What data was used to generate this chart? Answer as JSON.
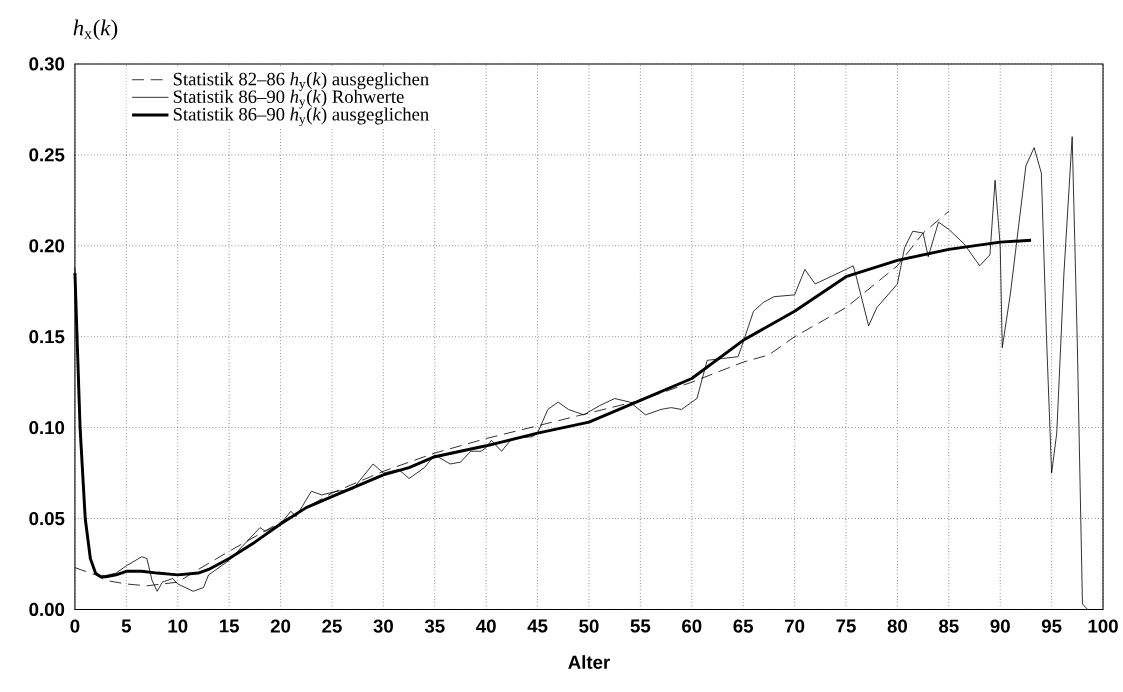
{
  "chart_data": {
    "type": "line",
    "xlabel": "Alter",
    "ylabel": "*h*$_{x}$(*k*)",
    "xlim": [
      0,
      100
    ],
    "ylim": [
      0,
      0.3
    ],
    "xticks": [
      0,
      5,
      10,
      15,
      20,
      25,
      30,
      35,
      40,
      45,
      50,
      55,
      60,
      65,
      70,
      75,
      80,
      85,
      90,
      95,
      100
    ],
    "yticks": [
      {
        "value": 0,
        "label": "0.00"
      },
      {
        "value": 0.05,
        "label": "0.05"
      },
      {
        "value": 0.1,
        "label": "0.10"
      },
      {
        "value": 0.15,
        "label": "0.15"
      },
      {
        "value": 0.2,
        "label": "0.20"
      },
      {
        "value": 0.25,
        "label": "0.25"
      },
      {
        "value": 0.3,
        "label": "0.30"
      }
    ],
    "grid": true,
    "legend": "top left",
    "series": [
      {
        "name": "Statistik 82–86 *h*$_{y}$(*k*) ausgeglichen",
        "color": "#000000",
        "line_style": "dashed",
        "x": [
          0,
          1,
          2,
          3,
          5,
          7,
          10,
          12,
          15,
          20,
          25,
          30,
          35,
          40,
          45,
          50,
          55,
          60,
          65,
          67.5,
          70,
          75,
          80,
          82.5,
          85
        ],
        "values": [
          0.023,
          0.021,
          0.019,
          0.016,
          0.014,
          0.013,
          0.015,
          0.022,
          0.032,
          0.048,
          0.064,
          0.076,
          0.086,
          0.094,
          0.101,
          0.108,
          0.115,
          0.125,
          0.136,
          0.14,
          0.15,
          0.166,
          0.189,
          0.207,
          0.219
        ]
      },
      {
        "name": "Statistik 86–90 *h*$_{y}$(*k*) Rohwerte",
        "color": "#000000",
        "line_style": "solid",
        "x": [
          0,
          0.5,
          1,
          1.5,
          2,
          2.5,
          4,
          5,
          6.5,
          7,
          7.5,
          8,
          8.5,
          9.5,
          10,
          11.5,
          12.5,
          13,
          15,
          18,
          18.5,
          20,
          21,
          21.5,
          23,
          24,
          25.5,
          27,
          29,
          30,
          31.5,
          32.5,
          34,
          35,
          36.5,
          37.5,
          38.5,
          39.5,
          40,
          40.5,
          41.5,
          42.5,
          44.5,
          45,
          46,
          47,
          48,
          49.5,
          51,
          52.5,
          54,
          55.5,
          57,
          58,
          59,
          60.5,
          61.5,
          63,
          64.5,
          65,
          66,
          67,
          68,
          70,
          71,
          72,
          75,
          75.7,
          76,
          77.2,
          78,
          80,
          80.7,
          81.5,
          82.5,
          83,
          84,
          85,
          86.5,
          88,
          89,
          89.5,
          90,
          90.2,
          91,
          92.5,
          93.3,
          94,
          94.5,
          95,
          95.5,
          96.2,
          97,
          97.5,
          98,
          98.5
        ],
        "values": [
          0.188,
          0.105,
          0.052,
          0.028,
          0.02,
          0.018,
          0.02,
          0.024,
          0.029,
          0.028,
          0.016,
          0.01,
          0.015,
          0.017,
          0.014,
          0.01,
          0.012,
          0.019,
          0.027,
          0.045,
          0.043,
          0.047,
          0.054,
          0.051,
          0.065,
          0.063,
          0.065,
          0.066,
          0.08,
          0.075,
          0.077,
          0.072,
          0.078,
          0.085,
          0.08,
          0.081,
          0.087,
          0.087,
          0.089,
          0.093,
          0.087,
          0.094,
          0.095,
          0.097,
          0.11,
          0.114,
          0.11,
          0.107,
          0.112,
          0.116,
          0.114,
          0.107,
          0.11,
          0.111,
          0.11,
          0.116,
          0.137,
          0.138,
          0.139,
          0.147,
          0.164,
          0.169,
          0.172,
          0.173,
          0.187,
          0.179,
          0.187,
          0.189,
          0.183,
          0.156,
          0.166,
          0.179,
          0.199,
          0.208,
          0.207,
          0.194,
          0.213,
          0.209,
          0.201,
          0.189,
          0.195,
          0.236,
          0.2,
          0.144,
          0.174,
          0.244,
          0.254,
          0.24,
          0.15,
          0.075,
          0.097,
          0.185,
          0.26,
          0.146,
          0.003,
          0.0
        ]
      },
      {
        "name": "Statistik 86–90 *h*$_{y}$(*k*) ausgeglichen",
        "color": "#000000",
        "line_style": "solid",
        "x": [
          0,
          0.5,
          1,
          1.5,
          2,
          2.5,
          3,
          4,
          5,
          6.5,
          8,
          10,
          12,
          13,
          15,
          17.5,
          20,
          22.5,
          25,
          27.5,
          30,
          32.5,
          35,
          40,
          45,
          50,
          55,
          60,
          65,
          70,
          75,
          80,
          85,
          90,
          93
        ],
        "values": [
          0.185,
          0.1,
          0.05,
          0.028,
          0.02,
          0.018,
          0.018,
          0.019,
          0.021,
          0.021,
          0.02,
          0.019,
          0.02,
          0.022,
          0.028,
          0.037,
          0.047,
          0.056,
          0.062,
          0.068,
          0.074,
          0.078,
          0.084,
          0.09,
          0.097,
          0.103,
          0.115,
          0.127,
          0.148,
          0.164,
          0.183,
          0.192,
          0.198,
          0.202,
          0.203
        ]
      }
    ]
  }
}
